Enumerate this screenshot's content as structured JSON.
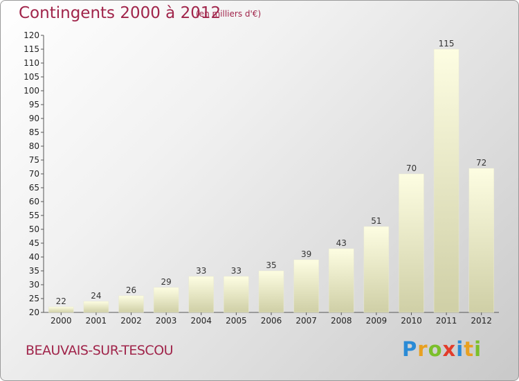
{
  "header": {
    "title": "Contingents 2000 à 2012",
    "subtitle": "(en milliers d'€)"
  },
  "footer": {
    "city": "BEAUVAIS-SUR-TESCOU",
    "logo": {
      "letters": [
        "P",
        "r",
        "o",
        "x",
        "i",
        "t",
        "i"
      ],
      "colors": [
        "#2a8bd6",
        "#e8a020",
        "#7bbf2a",
        "#e23c2a",
        "#2a8bd6",
        "#e8a020",
        "#7bbf2a"
      ]
    }
  },
  "colors": {
    "bar_top": "#fdfde2",
    "bar_bottom": "#cfcfa6",
    "text_accent": "#a0244a"
  },
  "chart_data": {
    "type": "bar",
    "categories": [
      "2000",
      "2001",
      "2002",
      "2003",
      "2004",
      "2005",
      "2006",
      "2007",
      "2008",
      "2009",
      "2010",
      "2011",
      "2012"
    ],
    "values": [
      22,
      24,
      26,
      29,
      33,
      33,
      35,
      39,
      43,
      51,
      70,
      115,
      72
    ],
    "ylim": [
      20,
      120
    ],
    "ytick_step": 5,
    "grid": false,
    "data_labels": true
  }
}
